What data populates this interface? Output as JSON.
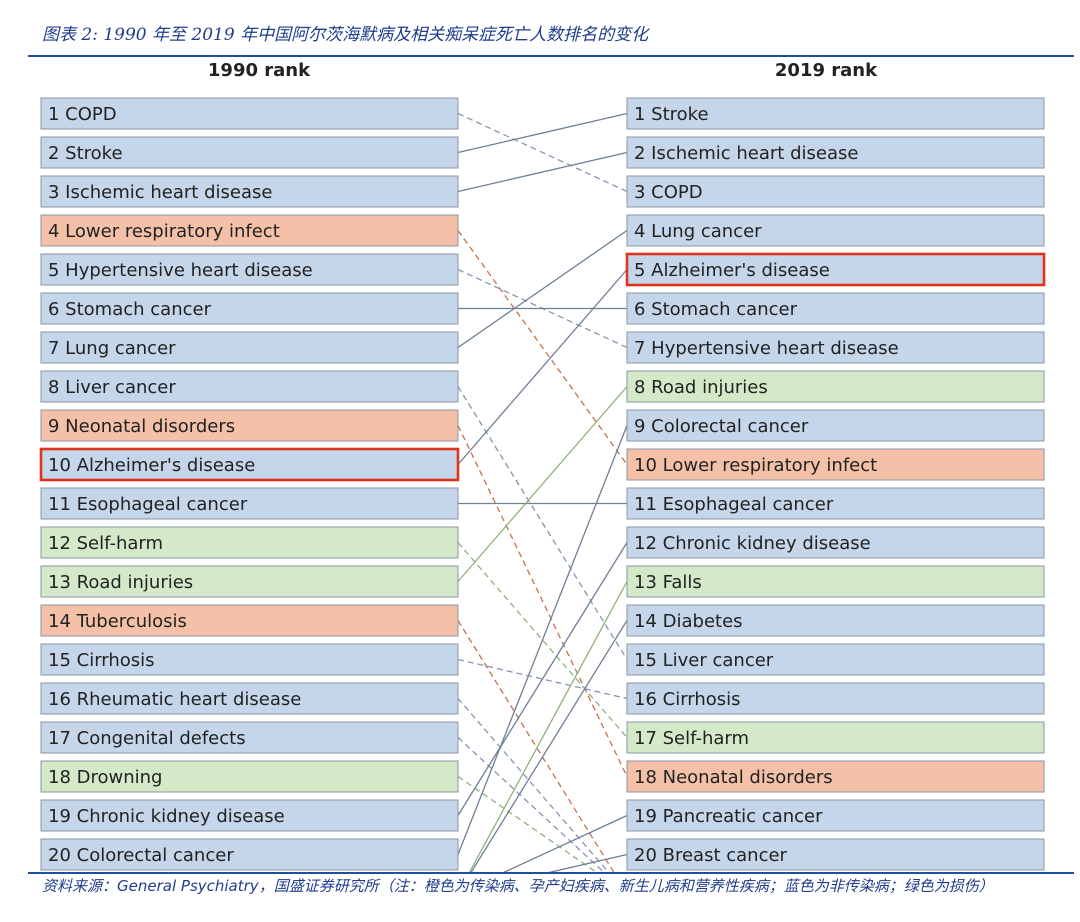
{
  "caption": "图表 2: 1990 年至 2019 年中国阿尔茨海默病及相关痴呆症死亡人数排名的变化",
  "source": {
    "prefix": "资料来源：",
    "ref": "General Psychiatry",
    "text": "，国盛证券研究所（注：橙色为传染病、孕产妇疾病、新生儿病和营养性疾病；蓝色为非传染病；绿色为损伤）"
  },
  "colors": {
    "ncd": "#c5d6ea",
    "communicable": "#f4c0a8",
    "injury": "#d4e9c8",
    "box_border": "#8a96a6",
    "highlight_border": "#e0341f",
    "rise_line": "#6e7f94",
    "fall_ncd_line": "#8893b4",
    "fall_communicable_line": "#c8714a",
    "fall_injury_line": "#8fb27a",
    "rise_injury_line": "#8fb27a"
  },
  "chart_data": {
    "type": "table",
    "left_title": "1990 rank",
    "right_title": "2019 rank",
    "highlight": "Alzheimer's disease",
    "left": [
      {
        "rank": 1,
        "label": "1 COPD",
        "cause": "COPD",
        "category": "ncd"
      },
      {
        "rank": 2,
        "label": "2 Stroke",
        "cause": "Stroke",
        "category": "ncd"
      },
      {
        "rank": 3,
        "label": "3 Ischemic heart disease",
        "cause": "Ischemic heart disease",
        "category": "ncd"
      },
      {
        "rank": 4,
        "label": "4 Lower respiratory infect",
        "cause": "Lower respiratory infect",
        "category": "communicable"
      },
      {
        "rank": 5,
        "label": "5 Hypertensive heart disease",
        "cause": "Hypertensive heart disease",
        "category": "ncd"
      },
      {
        "rank": 6,
        "label": "6 Stomach cancer",
        "cause": "Stomach cancer",
        "category": "ncd"
      },
      {
        "rank": 7,
        "label": "7 Lung cancer",
        "cause": "Lung cancer",
        "category": "ncd"
      },
      {
        "rank": 8,
        "label": "8 Liver cancer",
        "cause": "Liver cancer",
        "category": "ncd"
      },
      {
        "rank": 9,
        "label": "9 Neonatal disorders",
        "cause": "Neonatal disorders",
        "category": "communicable"
      },
      {
        "rank": 10,
        "label": "10 Alzheimer's disease",
        "cause": "Alzheimer's disease",
        "category": "ncd"
      },
      {
        "rank": 11,
        "label": "11 Esophageal cancer",
        "cause": "Esophageal cancer",
        "category": "ncd"
      },
      {
        "rank": 12,
        "label": "12 Self-harm",
        "cause": "Self-harm",
        "category": "injury"
      },
      {
        "rank": 13,
        "label": "13 Road injuries",
        "cause": "Road injuries",
        "category": "injury"
      },
      {
        "rank": 14,
        "label": "14 Tuberculosis",
        "cause": "Tuberculosis",
        "category": "communicable"
      },
      {
        "rank": 15,
        "label": "15 Cirrhosis",
        "cause": "Cirrhosis",
        "category": "ncd"
      },
      {
        "rank": 16,
        "label": "16 Rheumatic heart disease",
        "cause": "Rheumatic heart disease",
        "category": "ncd"
      },
      {
        "rank": 17,
        "label": "17 Congenital defects",
        "cause": "Congenital defects",
        "category": "ncd"
      },
      {
        "rank": 18,
        "label": "18 Drowning",
        "cause": "Drowning",
        "category": "injury"
      },
      {
        "rank": 19,
        "label": "19 Chronic kidney disease",
        "cause": "Chronic kidney disease",
        "category": "ncd"
      },
      {
        "rank": 20,
        "label": "20 Colorectal cancer",
        "cause": "Colorectal cancer",
        "category": "ncd"
      }
    ],
    "right": [
      {
        "rank": 1,
        "label": "1 Stroke",
        "cause": "Stroke",
        "category": "ncd"
      },
      {
        "rank": 2,
        "label": "2 Ischemic heart disease",
        "cause": "Ischemic heart disease",
        "category": "ncd"
      },
      {
        "rank": 3,
        "label": "3 COPD",
        "cause": "COPD",
        "category": "ncd"
      },
      {
        "rank": 4,
        "label": "4 Lung cancer",
        "cause": "Lung cancer",
        "category": "ncd"
      },
      {
        "rank": 5,
        "label": "5 Alzheimer's disease",
        "cause": "Alzheimer's disease",
        "category": "ncd"
      },
      {
        "rank": 6,
        "label": "6 Stomach cancer",
        "cause": "Stomach cancer",
        "category": "ncd"
      },
      {
        "rank": 7,
        "label": "7 Hypertensive heart disease",
        "cause": "Hypertensive heart disease",
        "category": "ncd"
      },
      {
        "rank": 8,
        "label": "8 Road injuries",
        "cause": "Road injuries",
        "category": "injury"
      },
      {
        "rank": 9,
        "label": "9 Colorectal cancer",
        "cause": "Colorectal cancer",
        "category": "ncd"
      },
      {
        "rank": 10,
        "label": "10 Lower respiratory infect",
        "cause": "Lower respiratory infect",
        "category": "communicable"
      },
      {
        "rank": 11,
        "label": "11 Esophageal cancer",
        "cause": "Esophageal cancer",
        "category": "ncd"
      },
      {
        "rank": 12,
        "label": "12 Chronic kidney disease",
        "cause": "Chronic kidney disease",
        "category": "ncd"
      },
      {
        "rank": 13,
        "label": "13 Falls",
        "cause": "Falls",
        "category": "injury"
      },
      {
        "rank": 14,
        "label": "14 Diabetes",
        "cause": "Diabetes",
        "category": "ncd"
      },
      {
        "rank": 15,
        "label": "15 Liver cancer",
        "cause": "Liver cancer",
        "category": "ncd"
      },
      {
        "rank": 16,
        "label": "16 Cirrhosis",
        "cause": "Cirrhosis",
        "category": "ncd"
      },
      {
        "rank": 17,
        "label": "17 Self-harm",
        "cause": "Self-harm",
        "category": "injury"
      },
      {
        "rank": 18,
        "label": "18 Neonatal disorders",
        "cause": "Neonatal disorders",
        "category": "communicable"
      },
      {
        "rank": 19,
        "label": "19 Pancreatic cancer",
        "cause": "Pancreatic cancer",
        "category": "ncd"
      },
      {
        "rank": 20,
        "label": "20 Breast cancer",
        "cause": "Breast cancer",
        "category": "ncd"
      }
    ],
    "links": [
      {
        "cause": "COPD",
        "from_rank": 1,
        "to_rank": 3
      },
      {
        "cause": "Stroke",
        "from_rank": 2,
        "to_rank": 1
      },
      {
        "cause": "Ischemic heart disease",
        "from_rank": 3,
        "to_rank": 2
      },
      {
        "cause": "Lower respiratory infect",
        "from_rank": 4,
        "to_rank": 10
      },
      {
        "cause": "Hypertensive heart disease",
        "from_rank": 5,
        "to_rank": 7
      },
      {
        "cause": "Stomach cancer",
        "from_rank": 6,
        "to_rank": 6
      },
      {
        "cause": "Lung cancer",
        "from_rank": 7,
        "to_rank": 4
      },
      {
        "cause": "Liver cancer",
        "from_rank": 8,
        "to_rank": 15
      },
      {
        "cause": "Neonatal disorders",
        "from_rank": 9,
        "to_rank": 18
      },
      {
        "cause": "Alzheimer's disease",
        "from_rank": 10,
        "to_rank": 5
      },
      {
        "cause": "Esophageal cancer",
        "from_rank": 11,
        "to_rank": 11
      },
      {
        "cause": "Self-harm",
        "from_rank": 12,
        "to_rank": 17
      },
      {
        "cause": "Road injuries",
        "from_rank": 13,
        "to_rank": 8
      },
      {
        "cause": "Tuberculosis",
        "from_rank": 14,
        "to_rank": 21
      },
      {
        "cause": "Cirrhosis",
        "from_rank": 15,
        "to_rank": 16
      },
      {
        "cause": "Rheumatic heart disease",
        "from_rank": 16,
        "to_rank": 21
      },
      {
        "cause": "Congenital defects",
        "from_rank": 17,
        "to_rank": 21
      },
      {
        "cause": "Drowning",
        "from_rank": 18,
        "to_rank": 21
      },
      {
        "cause": "Chronic kidney disease",
        "from_rank": 19,
        "to_rank": 12
      },
      {
        "cause": "Colorectal cancer",
        "from_rank": 20,
        "to_rank": 9
      },
      {
        "cause": "Falls",
        "from_rank": 21,
        "to_rank": 13
      },
      {
        "cause": "Diabetes",
        "from_rank": 21,
        "to_rank": 14
      },
      {
        "cause": "Pancreatic cancer",
        "from_rank": 21,
        "to_rank": 19
      },
      {
        "cause": "Breast cancer",
        "from_rank": 21,
        "to_rank": 20
      }
    ]
  }
}
